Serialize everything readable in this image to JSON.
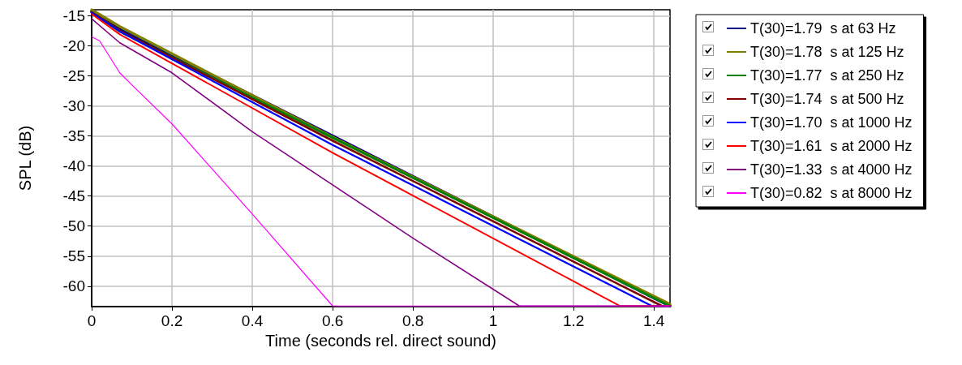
{
  "chart_data": {
    "type": "line",
    "xlabel": "Time (seconds rel. direct sound)",
    "ylabel": "SPL (dB)",
    "xlim": [
      0,
      1.44
    ],
    "ylim": [
      -63.4,
      -14
    ],
    "xticks": [
      0,
      0.2,
      0.4,
      0.6,
      0.8,
      1,
      1.2,
      1.4
    ],
    "yticks": [
      -15,
      -20,
      -25,
      -30,
      -35,
      -40,
      -45,
      -50,
      -55,
      -60
    ],
    "grid": true,
    "legend": "right",
    "marker": "none",
    "line_style": "solid",
    "series": [
      {
        "name": "T(30)=1.79  s at 63 Hz",
        "color": "#000080",
        "x": [
          0,
          0.07,
          0.6,
          1.44
        ],
        "values": [
          -14.3,
          -17.2,
          -35.0,
          -63.3
        ]
      },
      {
        "name": "T(30)=1.78  s at 125 Hz",
        "color": "#808000",
        "x": [
          0,
          0.07,
          0.6,
          1.44
        ],
        "values": [
          -14.0,
          -16.8,
          -35.2,
          -63.0
        ]
      },
      {
        "name": "T(30)=1.77  s at 250 Hz",
        "color": "#008000",
        "x": [
          0,
          0.07,
          0.6,
          1.44
        ],
        "values": [
          -14.4,
          -17.6,
          -35.3,
          -63.3
        ]
      },
      {
        "name": "T(30)=1.74  s at 500 Hz",
        "color": "#800000",
        "x": [
          0,
          0.07,
          0.6,
          1.42,
          1.44
        ],
        "values": [
          -14.4,
          -17.5,
          -35.8,
          -63.3,
          -63.3
        ]
      },
      {
        "name": "T(30)=1.70  s at 1000 Hz",
        "color": "#0000ff",
        "x": [
          0,
          0.07,
          0.6,
          1.395,
          1.44
        ],
        "values": [
          -14.5,
          -17.6,
          -36.5,
          -63.3,
          -63.3
        ]
      },
      {
        "name": "T(30)=1.61  s at 2000 Hz",
        "color": "#ff0000",
        "x": [
          0,
          0.07,
          0.6,
          1.315,
          1.44
        ],
        "values": [
          -14.7,
          -18.1,
          -37.8,
          -63.3,
          -63.3
        ]
      },
      {
        "name": "T(30)=1.33  s at 4000 Hz",
        "color": "#800080",
        "x": [
          0,
          0.07,
          0.2,
          0.4,
          0.8,
          1.065,
          1.44
        ],
        "values": [
          -15.5,
          -19.5,
          -24.5,
          -34.3,
          -52.0,
          -63.3,
          -63.3
        ]
      },
      {
        "name": "T(30)=0.82  s at 8000 Hz",
        "color": "#ff00ff",
        "x": [
          0,
          0.02,
          0.07,
          0.1,
          0.2,
          0.4,
          0.6,
          1.44
        ],
        "values": [
          -18.5,
          -19.2,
          -24.5,
          -26.5,
          -33.0,
          -48.0,
          -63.3,
          -63.3
        ]
      }
    ]
  }
}
